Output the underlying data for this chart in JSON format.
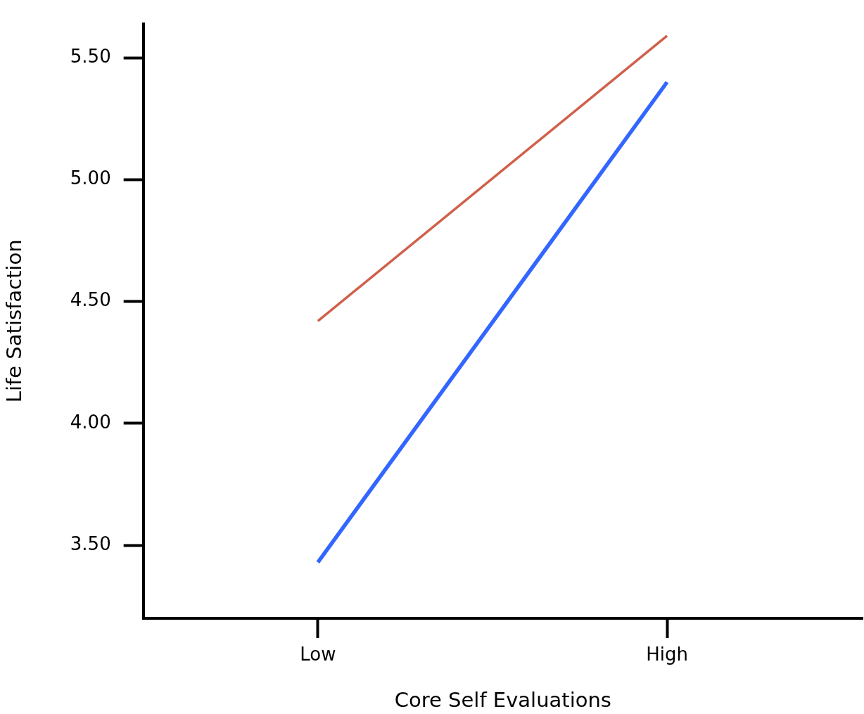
{
  "chart_data": {
    "type": "line",
    "xlabel": "Core Self Evaluations",
    "ylabel": "Life Satisfaction",
    "categories": [
      "Low",
      "High"
    ],
    "ylim": [
      3.2,
      5.64
    ],
    "yticks": [
      {
        "value": 3.5,
        "label": "3.50"
      },
      {
        "value": 4,
        "label": "4.00"
      },
      {
        "value": 4.5,
        "label": "4.50"
      },
      {
        "value": 5,
        "label": "5.00"
      },
      {
        "value": 5.5,
        "label": "5.50"
      }
    ],
    "grid": false,
    "legend": false,
    "marker": "none",
    "line_style": "solid",
    "series": [
      {
        "color": "#d0604a",
        "values": [
          4.42,
          5.59
        ]
      },
      {
        "color": "#3366ff",
        "values": [
          3.43,
          5.4
        ]
      }
    ]
  }
}
